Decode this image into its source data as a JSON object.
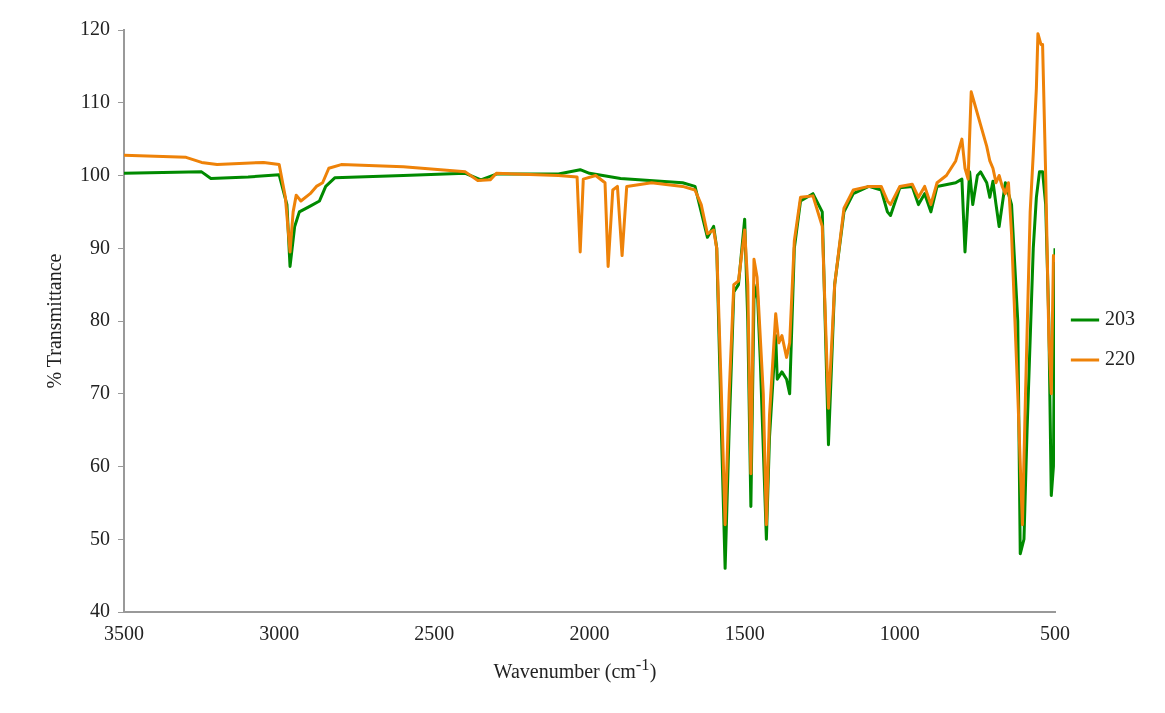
{
  "chart_data": {
    "type": "line",
    "xlabel": "Wavenumber (cm$^{-1}$)",
    "ylabel": "% Transmittance",
    "xlim": [
      3500,
      500
    ],
    "xticks": [
      3500,
      3000,
      2500,
      2000,
      1500,
      1000,
      500
    ],
    "ylim": [
      40,
      120
    ],
    "yticks": [
      40,
      50,
      60,
      70,
      80,
      90,
      100,
      110,
      120
    ],
    "grid": false,
    "legend": "right",
    "marker": "none",
    "line_style": "solid",
    "series": [
      {
        "name": "203",
        "color": "#008a00",
        "x": [
          3500,
          3250,
          3220,
          3100,
          3000,
          2975,
          2965,
          2950,
          2935,
          2900,
          2870,
          2850,
          2820,
          2600,
          2400,
          2350,
          2300,
          2100,
          2030,
          2000,
          1900,
          1700,
          1660,
          1640,
          1620,
          1600,
          1590,
          1575,
          1563,
          1550,
          1535,
          1520,
          1500,
          1490,
          1480,
          1470,
          1460,
          1450,
          1430,
          1420,
          1400,
          1395,
          1380,
          1365,
          1355,
          1340,
          1320,
          1280,
          1250,
          1230,
          1210,
          1180,
          1150,
          1100,
          1060,
          1040,
          1030,
          1000,
          960,
          940,
          920,
          900,
          880,
          820,
          800,
          790,
          775,
          765,
          750,
          740,
          720,
          710,
          700,
          690,
          680,
          660,
          640,
          620,
          612,
          600,
          590,
          570,
          560,
          550,
          540,
          530,
          520,
          512,
          505,
          500
        ],
        "values": [
          100.3,
          100.5,
          99.6,
          99.8,
          100.1,
          96,
          87.5,
          93,
          95,
          95.8,
          96.5,
          98.5,
          99.7,
          100,
          100.3,
          99.4,
          100.2,
          100.2,
          100.8,
          100.3,
          99.6,
          99,
          98.5,
          95,
          91.5,
          93,
          90,
          65,
          46,
          65,
          84,
          85,
          94,
          80,
          54.5,
          83,
          85,
          75,
          50,
          64,
          78,
          72,
          73,
          72,
          70,
          90,
          96.5,
          97.5,
          95,
          63,
          85,
          95,
          97.5,
          98.5,
          98,
          95,
          94.5,
          98.3,
          98.5,
          96,
          97.5,
          95,
          98.5,
          99,
          99.5,
          89.5,
          100.5,
          96,
          100,
          100.5,
          99,
          97,
          99.2,
          96,
          93,
          99,
          96,
          80,
          48,
          50,
          65,
          90,
          97,
          100.5,
          100.5,
          96,
          80,
          56,
          60,
          90
        ]
      },
      {
        "name": "220",
        "color": "#ee8208",
        "x": [
          3500,
          3300,
          3250,
          3200,
          3050,
          3000,
          2980,
          2965,
          2955,
          2945,
          2930,
          2900,
          2880,
          2860,
          2840,
          2800,
          2600,
          2400,
          2360,
          2320,
          2300,
          2100,
          2040,
          2030,
          2020,
          1980,
          1950,
          1940,
          1925,
          1910,
          1895,
          1880,
          1800,
          1700,
          1660,
          1640,
          1620,
          1600,
          1590,
          1575,
          1563,
          1550,
          1535,
          1520,
          1500,
          1490,
          1480,
          1470,
          1460,
          1440,
          1430,
          1420,
          1400,
          1390,
          1380,
          1365,
          1355,
          1340,
          1320,
          1280,
          1250,
          1230,
          1210,
          1180,
          1150,
          1100,
          1060,
          1040,
          1030,
          1000,
          960,
          940,
          920,
          900,
          880,
          850,
          820,
          800,
          790,
          780,
          770,
          760,
          740,
          720,
          710,
          700,
          690,
          680,
          670,
          660,
          650,
          640,
          620,
          605,
          595,
          580,
          570,
          560,
          555,
          545,
          540,
          530,
          520,
          512,
          505,
          500
        ],
        "values": [
          102.8,
          102.5,
          101.8,
          101.5,
          101.8,
          101.5,
          97,
          89.5,
          95,
          97.3,
          96.5,
          97.5,
          98.5,
          99,
          101,
          101.5,
          101.2,
          100.5,
          99.3,
          99.4,
          100.3,
          100,
          99.8,
          89.5,
          99.5,
          100,
          99,
          87.5,
          98,
          98.5,
          89,
          98.5,
          99,
          98.5,
          98,
          96,
          92,
          92.5,
          90,
          70,
          52,
          70,
          85,
          85.5,
          92.5,
          85,
          59,
          88.5,
          86,
          70,
          52,
          67,
          81,
          77,
          78,
          75,
          77,
          91,
          97,
          97.2,
          93,
          68,
          85,
          95.5,
          98,
          98.5,
          98.5,
          96.5,
          96,
          98.5,
          98.8,
          97,
          98.5,
          96,
          99,
          100,
          102,
          105,
          101,
          99.5,
          111.5,
          110,
          107,
          104,
          102,
          101,
          99,
          100,
          98.5,
          97.5,
          99,
          92,
          70,
          52,
          70,
          95,
          103,
          112,
          119.5,
          118,
          118,
          100,
          78,
          70,
          89,
          88
        ]
      }
    ]
  }
}
